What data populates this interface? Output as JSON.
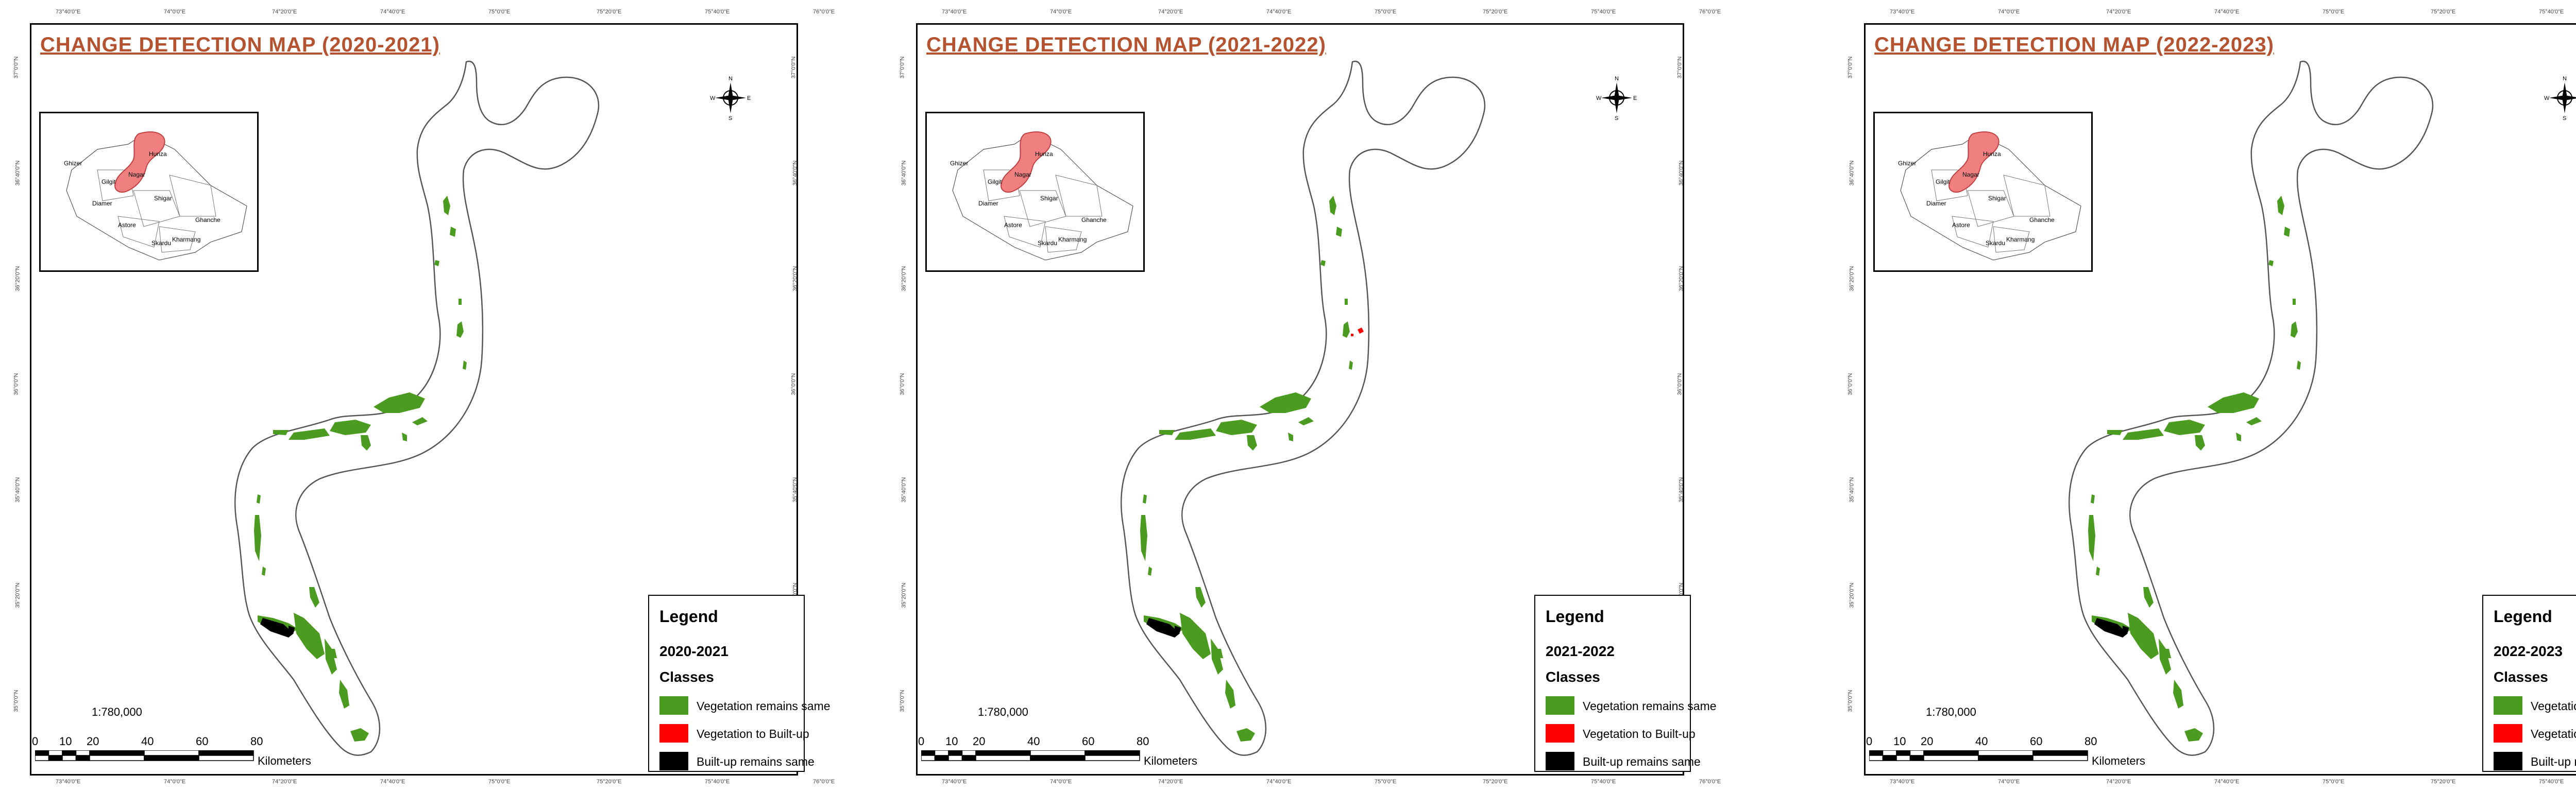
{
  "colors": {
    "vegetation_same": "#4a9b1f",
    "veg_to_builtup": "#ff0000",
    "builtup_same": "#000000",
    "title": "#b5522f",
    "highlight": "#f08080"
  },
  "shared": {
    "legend_title": "Legend",
    "classes_label": "Classes",
    "legend_items": [
      {
        "label": "Vegetation remains same",
        "color_key": "vegetation_same"
      },
      {
        "label": "Vegetation to Built-up",
        "color_key": "veg_to_builtup"
      },
      {
        "label": "Built-up remains same",
        "color_key": "builtup_same"
      }
    ],
    "scale_ratio": "1:780,000",
    "scale_labels": [
      "0",
      "10",
      "20",
      "40",
      "60",
      "80"
    ],
    "scale_unit": "Kilometers",
    "compass_icon": "north-arrow-icon",
    "compass_letters": {
      "n": "N",
      "s": "S",
      "e": "E",
      "w": "W"
    },
    "inset_districts": [
      "Ghizer",
      "Hunza",
      "Nagar",
      "Gilgit",
      "Diamer",
      "Shigar",
      "Ghanche",
      "Astore",
      "Skardu",
      "Kharmang"
    ],
    "top_ticks": [
      "73°40'0\"E",
      "74°0'0\"E",
      "74°20'0\"E",
      "74°40'0\"E",
      "75°0'0\"E",
      "75°20'0\"E",
      "75°40'0\"E",
      "76°0'0\"E"
    ],
    "side_ticks": [
      "37°0'0\"N",
      "36°40'0\"N",
      "36°20'0\"N",
      "36°0'0\"N",
      "35°40'0\"N",
      "35°20'0\"N",
      "35°0'0\"N"
    ]
  },
  "maps": [
    {
      "title": "CHANGE DETECTION MAP (2020-2021)",
      "period": "2020-2021"
    },
    {
      "title": "CHANGE DETECTION MAP (2021-2022)",
      "period": "2021-2022"
    },
    {
      "title": "CHANGE DETECTION MAP (2022-2023)",
      "period": "2022-2023"
    }
  ]
}
